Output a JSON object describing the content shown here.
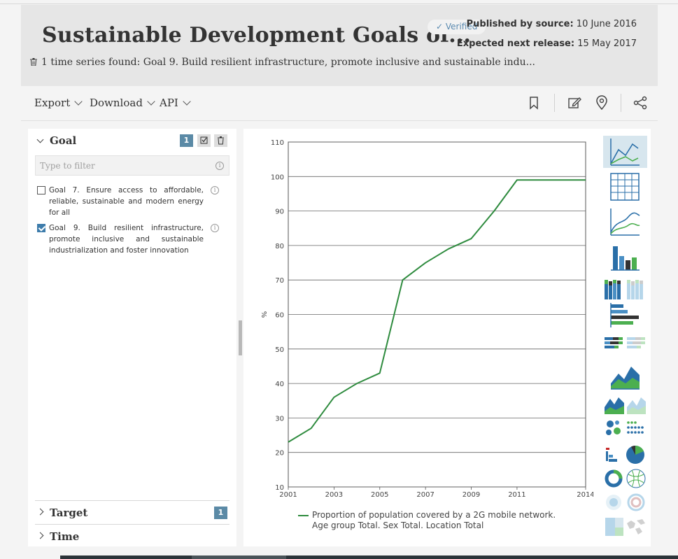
{
  "header": {
    "title": "Sustainable Development Goals of...",
    "verified_label": "✓ Verified",
    "published_label": "Published by source:",
    "published_value": "10 June 2016",
    "next_release_label": "Expected next release:",
    "next_release_value": "15 May 2017",
    "series_found": "1 time series found: Goal 9. Build resilient infrastructure, promote inclusive and sustainable indu..."
  },
  "toolbar": {
    "export_label": "Export",
    "download_label": "Download",
    "api_label": "API",
    "icons": [
      "bookmark-icon",
      "edit-icon",
      "location-pin-icon",
      "share-icon"
    ]
  },
  "filters": {
    "goal_section_label": "Goal",
    "goal_count": "1",
    "filter_placeholder": "Type to filter",
    "info_glyph": "i",
    "goals": [
      {
        "label": "Goal 7. Ensure access to affordable, reliable, sustainable and modern energy for all",
        "checked": false
      },
      {
        "label": "Goal 9. Build resilient infrastructure, promote inclusive and sustainable industrialization and foster innovation",
        "checked": true
      }
    ],
    "target_section_label": "Target",
    "target_count": "1",
    "time_section_label": "Time"
  },
  "chart_data": {
    "type": "line",
    "ylabel": "%",
    "xlabel": "",
    "title": "",
    "xlim": [
      2001,
      2014
    ],
    "ylim": [
      10,
      110
    ],
    "x_ticks": [
      2001,
      2003,
      2005,
      2007,
      2009,
      2011,
      2014
    ],
    "y_ticks": [
      10,
      20,
      30,
      40,
      50,
      60,
      70,
      80,
      90,
      100,
      110
    ],
    "grid": "horizontal",
    "series": [
      {
        "name": "Proportion of population covered by a 2G mobile network. Age group Total. Sex Total. Location Total",
        "color": "#2e8b3e",
        "x": [
          2001,
          2002,
          2003,
          2004,
          2005,
          2006,
          2007,
          2008,
          2009,
          2010,
          2011,
          2012,
          2013,
          2014
        ],
        "values": [
          23,
          27,
          36,
          40,
          43,
          70,
          75,
          79,
          82,
          90,
          99,
          99,
          99,
          99
        ]
      }
    ],
    "legend": {
      "line1": "Proportion of population covered by a 2G mobile network.",
      "line2": "Age group Total. Sex Total. Location Total",
      "placement": "bottom"
    }
  },
  "chart_types": [
    "line-chart-icon",
    "table-icon",
    "smooth-line-icon",
    "bar-chart-icon",
    "stacked-bar-icon",
    "horizontal-bar-icon",
    "stacked-horizontal-bar-icon",
    "area-chart-icon",
    "stacked-area-icon",
    "bubble-icon",
    "pareto-pie-icon",
    "donut-icon",
    "radial-icon",
    "treemap-map-icon"
  ],
  "colors": {
    "accent": "#5b8aa6",
    "series_green": "#2e8b3e",
    "chart_blue": "#2a6fa8"
  }
}
